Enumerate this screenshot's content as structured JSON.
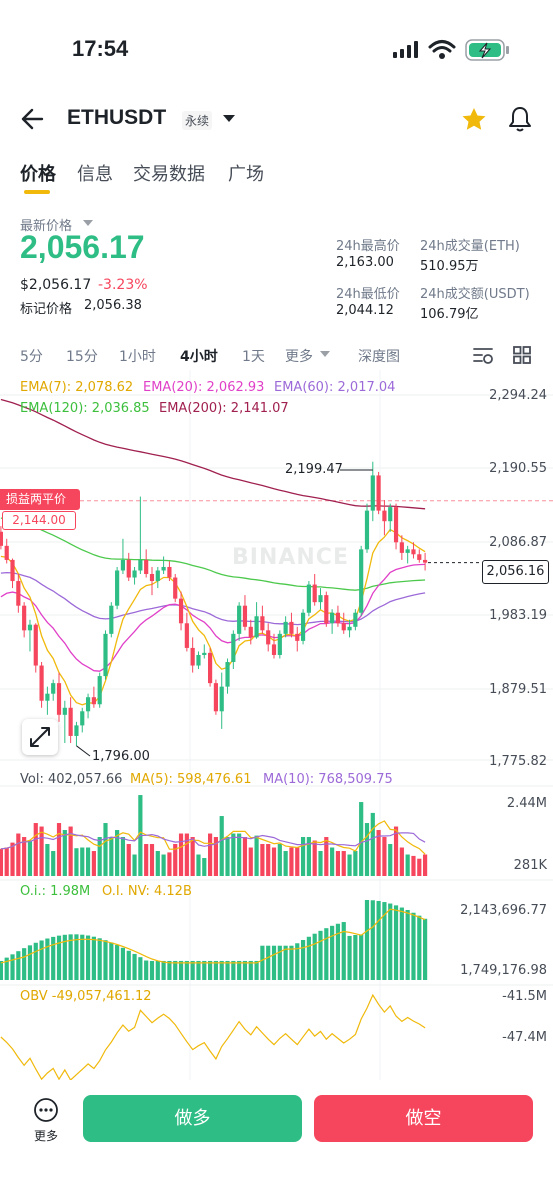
{
  "status": {
    "time": "17:54"
  },
  "header": {
    "pair": "ETHUSDT",
    "contract_type": "永续"
  },
  "tabs": [
    "价格",
    "信息",
    "交易数据",
    "广场"
  ],
  "price": {
    "latest_label": "最新价格",
    "last": "2,056.17",
    "usd": "$2,056.17",
    "change": "-3.23%",
    "mark_label": "标记价格",
    "mark": "2,056.38"
  },
  "stats": {
    "high_label": "24h最高价",
    "high": "2,163.00",
    "low_label": "24h最低价",
    "low": "2,044.12",
    "vol_eth_label": "24h成交量(ETH)",
    "vol_eth": "510.95万",
    "vol_usdt_label": "24h成交额(USDT)",
    "vol_usdt": "106.79亿"
  },
  "intervals": [
    "5分",
    "15分",
    "1小时",
    "4小时",
    "1天",
    "更多",
    "深度图"
  ],
  "active_interval": "4小时",
  "ema": {
    "ema7": "EMA(7): 2,078.62",
    "ema20": "EMA(20): 2,062.93",
    "ema60": "EMA(60): 2,017.04",
    "ema120": "EMA(120): 2,036.85",
    "ema200": "EMA(200): 2,141.07"
  },
  "price_axis": [
    "2,294.24",
    "2,190.55",
    "2,086.87",
    "1,983.19",
    "1,879.51",
    "1,775.82"
  ],
  "annotations": {
    "high": "2,199.47",
    "low": "1,796.00",
    "current": "2,056.16",
    "tpsl_label": "损益两平价",
    "tpsl_value": "2,144.00",
    "watermark": "BINANCE"
  },
  "volume": {
    "vol": "Vol: 402,057.66",
    "ma5": "MA(5): 598,476.61",
    "ma10": "MA(10): 768,509.75",
    "axis_top": "2.44M",
    "axis_bottom": "281K"
  },
  "open_interest": {
    "oi": "O.i.: 1.98M",
    "oi_nv": "O.I. NV: 4.12B",
    "axis_top": "2,143,696.77",
    "axis_bottom": "1,749,176.98"
  },
  "obv": {
    "label": "OBV -49,057,461.12",
    "axis_top": "-41.5M",
    "axis_bottom": "-47.4M"
  },
  "bottom": {
    "more": "更多",
    "long": "做多",
    "short": "做空"
  },
  "colors": {
    "up": "#2ebd85",
    "down": "#f6465d",
    "accent": "#f0b90b",
    "ema7": "#f0b90b",
    "ema20": "#e040c8",
    "ema60": "#9c6ad8",
    "ema120": "#4cc94c",
    "ema200": "#a0204f"
  },
  "chart_data": {
    "type": "candlestick",
    "interval": "4小时",
    "price_range": [
      1775.82,
      2294.24
    ],
    "candles_ohlc": [
      [
        2100,
        2108,
        2075,
        2080
      ],
      [
        2080,
        2090,
        2055,
        2060
      ],
      [
        2060,
        2062,
        2020,
        2030
      ],
      [
        2030,
        2040,
        1985,
        1995
      ],
      [
        1995,
        2000,
        1950,
        1960
      ],
      [
        1960,
        1975,
        1930,
        1968
      ],
      [
        1968,
        1970,
        1900,
        1910
      ],
      [
        1910,
        1915,
        1850,
        1860
      ],
      [
        1860,
        1880,
        1840,
        1870
      ],
      [
        1870,
        1890,
        1860,
        1885
      ],
      [
        1885,
        1900,
        1830,
        1840
      ],
      [
        1840,
        1860,
        1800,
        1850
      ],
      [
        1850,
        1865,
        1800,
        1810
      ],
      [
        1810,
        1830,
        1796,
        1825
      ],
      [
        1825,
        1850,
        1815,
        1845
      ],
      [
        1845,
        1870,
        1835,
        1865
      ],
      [
        1865,
        1880,
        1850,
        1855
      ],
      [
        1855,
        1900,
        1850,
        1895
      ],
      [
        1895,
        1960,
        1890,
        1955
      ],
      [
        1955,
        2000,
        1950,
        1995
      ],
      [
        1995,
        2050,
        1990,
        2045
      ],
      [
        2045,
        2090,
        2040,
        2060
      ],
      [
        2060,
        2070,
        2030,
        2035
      ],
      [
        2035,
        2050,
        2025,
        2045
      ],
      [
        2045,
        2150,
        2040,
        2060
      ],
      [
        2060,
        2075,
        2035,
        2040
      ],
      [
        2040,
        2050,
        2010,
        2030
      ],
      [
        2030,
        2050,
        2020,
        2045
      ],
      [
        2045,
        2065,
        2040,
        2050
      ],
      [
        2050,
        2058,
        2030,
        2035
      ],
      [
        2035,
        2040,
        2000,
        2005
      ],
      [
        2005,
        2015,
        1960,
        1970
      ],
      [
        1970,
        1985,
        1930,
        1935
      ],
      [
        1935,
        1950,
        1900,
        1910
      ],
      [
        1910,
        1930,
        1905,
        1925
      ],
      [
        1925,
        1940,
        1920,
        1928
      ],
      [
        1928,
        1935,
        1880,
        1885
      ],
      [
        1885,
        1890,
        1840,
        1845
      ],
      [
        1845,
        1900,
        1820,
        1880
      ],
      [
        1880,
        1920,
        1870,
        1915
      ],
      [
        1915,
        1960,
        1905,
        1955
      ],
      [
        1955,
        2000,
        1945,
        1995
      ],
      [
        1995,
        2010,
        1960,
        1965
      ],
      [
        1965,
        1975,
        1940,
        1950
      ],
      [
        1950,
        2000,
        1948,
        1980
      ],
      [
        1980,
        1995,
        1955,
        1960
      ],
      [
        1960,
        1970,
        1930,
        1940
      ],
      [
        1940,
        1955,
        1920,
        1925
      ],
      [
        1925,
        1960,
        1920,
        1955
      ],
      [
        1955,
        1980,
        1950,
        1972
      ],
      [
        1972,
        1985,
        1950,
        1955
      ],
      [
        1955,
        1965,
        1930,
        1945
      ],
      [
        1945,
        1990,
        1940,
        1985
      ],
      [
        1985,
        2030,
        1980,
        2025
      ],
      [
        2025,
        2040,
        1995,
        2000
      ],
      [
        2000,
        2020,
        1990,
        2010
      ],
      [
        2010,
        2015,
        1965,
        1970
      ],
      [
        1970,
        1990,
        1955,
        1985
      ],
      [
        1985,
        1995,
        1965,
        1970
      ],
      [
        1970,
        1985,
        1955,
        1960
      ],
      [
        1960,
        1975,
        1950,
        1965
      ],
      [
        1965,
        1990,
        1960,
        1985
      ],
      [
        1985,
        2080,
        1980,
        2075
      ],
      [
        2075,
        2140,
        2070,
        2130
      ],
      [
        2130,
        2199.47,
        2115,
        2180
      ],
      [
        2180,
        2185,
        2125,
        2130
      ],
      [
        2130,
        2145,
        2095,
        2115
      ],
      [
        2115,
        2140,
        2100,
        2135
      ],
      [
        2135,
        2140,
        2075,
        2085
      ],
      [
        2085,
        2095,
        2060,
        2070
      ],
      [
        2070,
        2080,
        2055,
        2075
      ],
      [
        2075,
        2085,
        2062,
        2068
      ],
      [
        2068,
        2075,
        2056,
        2060
      ],
      [
        2060,
        2070,
        2045,
        2056.17
      ]
    ],
    "volume": {
      "label_values": {
        "vol": 402057.66,
        "ma5": 598476.61,
        "ma10": 768509.75
      },
      "range": [
        281000,
        2440000
      ]
    },
    "open_interest": {
      "range": [
        1749176.98,
        2143696.77
      ]
    },
    "obv": {
      "range": [
        -47.4,
        -41.5
      ]
    }
  }
}
